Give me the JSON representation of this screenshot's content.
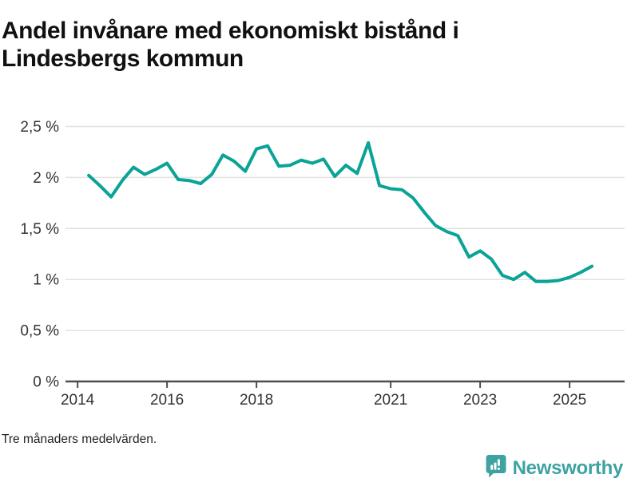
{
  "title": "Andel invånare med ekonomiskt bistånd i Lindesbergs kommun",
  "footer_note": "Tre månaders medelvärden.",
  "brand": {
    "name": "Newsworthy",
    "icon": "newsworthy-speech-bubble-bar-chart-icon",
    "color": "#3fa2a2"
  },
  "colors": {
    "line": "#0aa396",
    "grid": "#e2e2e2",
    "axis": "#4d4d4d",
    "tick_text": "#333333",
    "title_text": "#111111"
  },
  "chart_data": {
    "type": "line",
    "title": "Andel invånare med ekonomiskt bistånd i Lindesbergs kommun",
    "note": "Tre månaders medelvärden.",
    "unit": "%",
    "grid": true,
    "legend": "none",
    "ylim": [
      0,
      2.5
    ],
    "xlim": [
      2013.73,
      2026.23
    ],
    "y_ticks": [
      {
        "value": 0,
        "label": "0 %"
      },
      {
        "value": 0.5,
        "label": "0,5 %"
      },
      {
        "value": 1,
        "label": "1 %"
      },
      {
        "value": 1.5,
        "label": "1,5 %"
      },
      {
        "value": 2,
        "label": "2 %"
      },
      {
        "value": 2.5,
        "label": "2,5 %"
      }
    ],
    "x_ticks": [
      {
        "value": 2014,
        "label": "2014"
      },
      {
        "value": 2016,
        "label": "2016"
      },
      {
        "value": 2018,
        "label": "2018"
      },
      {
        "value": 2021,
        "label": "2021"
      },
      {
        "value": 2023,
        "label": "2023"
      },
      {
        "value": 2025,
        "label": "2025"
      }
    ],
    "series": [
      {
        "name": "Andel invånare med ekonomiskt bistånd",
        "color": "#0aa396",
        "points": [
          {
            "date": "2014-04",
            "value": 2.02
          },
          {
            "date": "2014-07",
            "value": 1.92
          },
          {
            "date": "2014-10",
            "value": 1.81
          },
          {
            "date": "2015-01",
            "value": 1.97
          },
          {
            "date": "2015-04",
            "value": 2.1
          },
          {
            "date": "2015-07",
            "value": 2.03
          },
          {
            "date": "2015-10",
            "value": 2.08
          },
          {
            "date": "2016-01",
            "value": 2.14
          },
          {
            "date": "2016-04",
            "value": 1.98
          },
          {
            "date": "2016-07",
            "value": 1.97
          },
          {
            "date": "2016-10",
            "value": 1.94
          },
          {
            "date": "2017-01",
            "value": 2.03
          },
          {
            "date": "2017-04",
            "value": 2.22
          },
          {
            "date": "2017-07",
            "value": 2.16
          },
          {
            "date": "2017-10",
            "value": 2.06
          },
          {
            "date": "2018-01",
            "value": 2.28
          },
          {
            "date": "2018-04",
            "value": 2.31
          },
          {
            "date": "2018-07",
            "value": 2.11
          },
          {
            "date": "2018-10",
            "value": 2.12
          },
          {
            "date": "2019-01",
            "value": 2.17
          },
          {
            "date": "2019-04",
            "value": 2.14
          },
          {
            "date": "2019-07",
            "value": 2.18
          },
          {
            "date": "2019-10",
            "value": 2.01
          },
          {
            "date": "2020-01",
            "value": 2.12
          },
          {
            "date": "2020-04",
            "value": 2.04
          },
          {
            "date": "2020-07",
            "value": 2.34
          },
          {
            "date": "2020-10",
            "value": 1.92
          },
          {
            "date": "2021-01",
            "value": 1.89
          },
          {
            "date": "2021-04",
            "value": 1.88
          },
          {
            "date": "2021-07",
            "value": 1.8
          },
          {
            "date": "2021-10",
            "value": 1.66
          },
          {
            "date": "2022-01",
            "value": 1.53
          },
          {
            "date": "2022-04",
            "value": 1.47
          },
          {
            "date": "2022-07",
            "value": 1.43
          },
          {
            "date": "2022-10",
            "value": 1.22
          },
          {
            "date": "2023-01",
            "value": 1.28
          },
          {
            "date": "2023-04",
            "value": 1.2
          },
          {
            "date": "2023-07",
            "value": 1.04
          },
          {
            "date": "2023-10",
            "value": 1.0
          },
          {
            "date": "2024-01",
            "value": 1.07
          },
          {
            "date": "2024-04",
            "value": 0.98
          },
          {
            "date": "2024-07",
            "value": 0.98
          },
          {
            "date": "2024-10",
            "value": 0.99
          },
          {
            "date": "2025-01",
            "value": 1.02
          },
          {
            "date": "2025-04",
            "value": 1.07
          },
          {
            "date": "2025-07",
            "value": 1.13
          }
        ]
      }
    ]
  }
}
